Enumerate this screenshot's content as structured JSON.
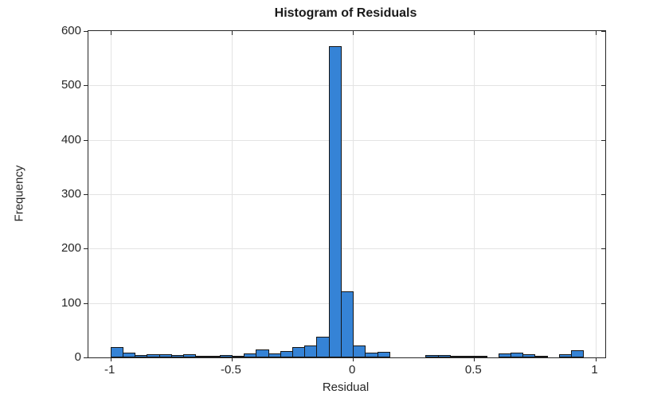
{
  "figure": {
    "background_color": "#ffffff"
  },
  "chart_data": {
    "type": "bar",
    "subtype": "histogram",
    "title": "Histogram of Residuals",
    "xlabel": "Residual",
    "ylabel": "Frequency",
    "bar_fill_color": "#3583d6",
    "bar_edge_color": "#161616",
    "grid_color": "#e3e3e3",
    "axis_color": "#262626",
    "text_color": "#262626",
    "grid": true,
    "legend": null,
    "xlim": [
      -1.091,
      1.041
    ],
    "ylim": [
      0,
      600
    ],
    "xticks": [
      -1,
      -0.5,
      0,
      0.5,
      1
    ],
    "xtick_labels": [
      "-1",
      "-0.5",
      "0",
      "0.5",
      "1"
    ],
    "yticks": [
      0,
      100,
      200,
      300,
      400,
      500,
      600
    ],
    "ytick_labels": [
      "0",
      "100",
      "200",
      "300",
      "400",
      "500",
      "600"
    ],
    "bin_start": -1.0,
    "bin_width": 0.05,
    "counts": [
      19,
      9,
      4,
      6,
      6,
      4,
      6,
      1,
      3,
      4,
      3,
      8,
      15,
      7,
      11,
      19,
      22,
      38,
      572,
      121,
      22,
      9,
      10,
      0,
      0,
      0,
      5,
      4,
      2,
      2,
      3,
      0,
      7,
      9,
      6,
      2,
      0,
      6,
      13,
      0
    ]
  }
}
